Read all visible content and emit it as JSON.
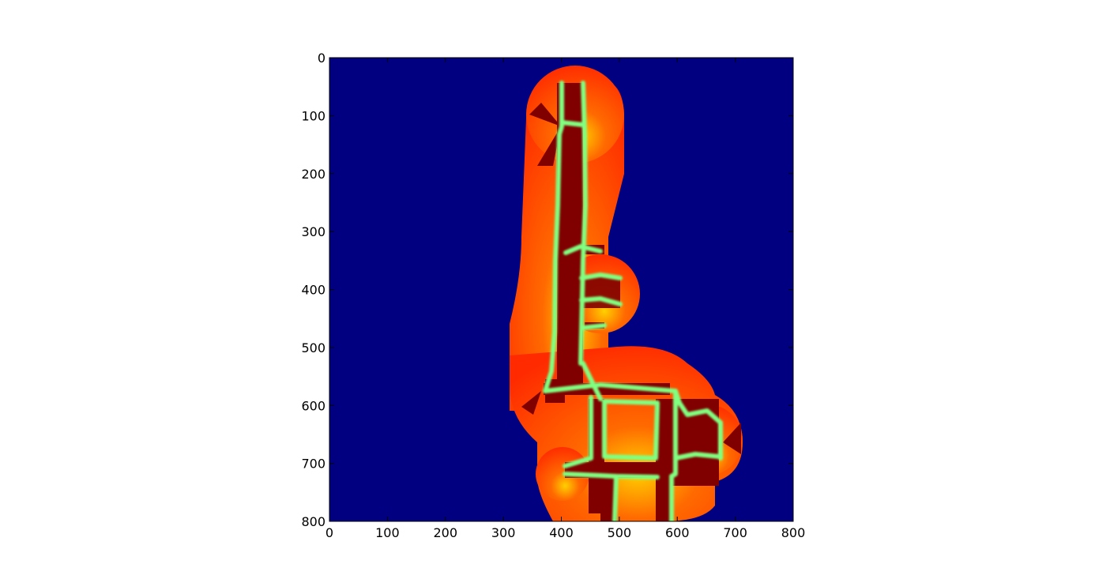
{
  "chart_data": {
    "type": "heatmap",
    "colormap": "jet",
    "grid": false,
    "xlim": [
      0,
      800
    ],
    "ylim": [
      800,
      0
    ],
    "x_ticks": [
      "0",
      "100",
      "200",
      "300",
      "400",
      "500",
      "600",
      "700",
      "800"
    ],
    "y_ticks": [
      "0",
      "100",
      "200",
      "300",
      "400",
      "500",
      "600",
      "700",
      "800"
    ],
    "colors": {
      "background": "#000080",
      "field_outer": "#ff2a00",
      "field_mid": "#ff6a00",
      "field_inner": "#ffd000",
      "walls": "#80ff80",
      "obstacles": "#800000"
    }
  }
}
